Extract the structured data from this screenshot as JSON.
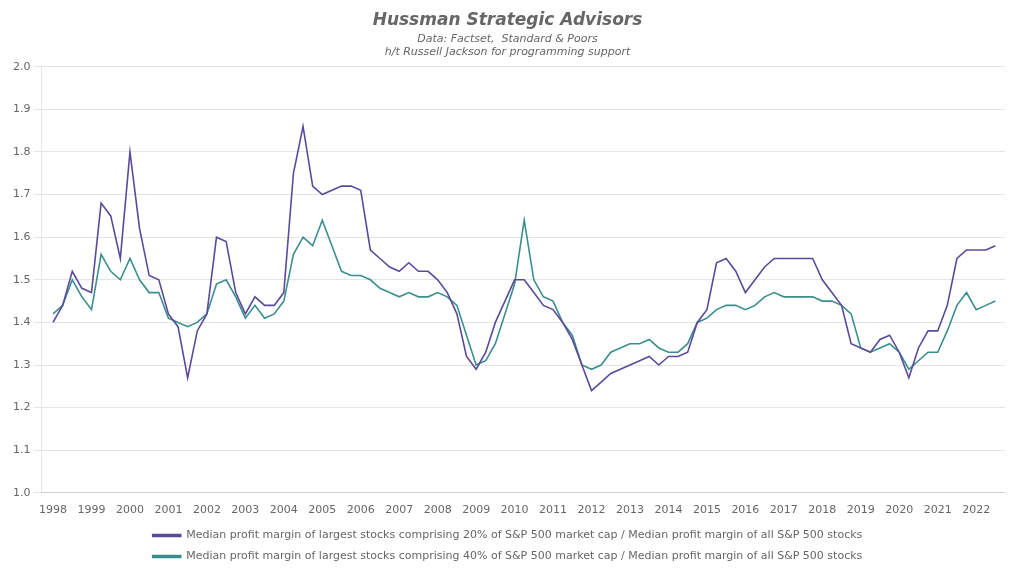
{
  "chart_data": {
    "type": "line",
    "title": "Hussman Strategic Advisors",
    "subtitle": [
      "Data: Factset,  Standard & Poors",
      "h/t Russell Jackson for programming support"
    ],
    "x": [
      1998.0,
      1998.25,
      1998.5,
      1998.75,
      1999.0,
      1999.25,
      1999.5,
      1999.75,
      2000.0,
      2000.25,
      2000.5,
      2000.75,
      2001.0,
      2001.25,
      2001.5,
      2001.75,
      2002.0,
      2002.25,
      2002.5,
      2002.75,
      2003.0,
      2003.25,
      2003.5,
      2003.75,
      2004.0,
      2004.25,
      2004.5,
      2004.75,
      2005.0,
      2005.25,
      2005.5,
      2005.75,
      2006.0,
      2006.25,
      2006.5,
      2006.75,
      2007.0,
      2007.25,
      2007.5,
      2007.75,
      2008.0,
      2008.25,
      2008.5,
      2008.75,
      2009.0,
      2009.25,
      2009.5,
      2009.75,
      2010.0,
      2010.25,
      2010.5,
      2010.75,
      2011.0,
      2011.25,
      2011.5,
      2011.75,
      2012.0,
      2012.25,
      2012.5,
      2012.75,
      2013.0,
      2013.25,
      2013.5,
      2013.75,
      2014.0,
      2014.25,
      2014.5,
      2014.75,
      2015.0,
      2015.25,
      2015.5,
      2015.75,
      2016.0,
      2016.25,
      2016.5,
      2016.75,
      2017.0,
      2017.25,
      2017.5,
      2017.75,
      2018.0,
      2018.25,
      2018.5,
      2018.75,
      2019.0,
      2019.25,
      2019.5,
      2019.75,
      2020.0,
      2020.25,
      2020.5,
      2020.75,
      2021.0,
      2021.25,
      2021.5,
      2021.75,
      2022.0,
      2022.25,
      2022.5
    ],
    "series": [
      {
        "name": "Median profit margin of largest stocks comprising 20% of S&P 500 market cap / Median profit margin of all S&P 500 stocks",
        "color": "#5B4A9B",
        "values": [
          1.4,
          1.44,
          1.52,
          1.48,
          1.47,
          1.68,
          1.65,
          1.55,
          1.8,
          1.62,
          1.51,
          1.5,
          1.42,
          1.39,
          1.27,
          1.38,
          1.42,
          1.6,
          1.59,
          1.47,
          1.42,
          1.46,
          1.44,
          1.44,
          1.47,
          1.75,
          1.86,
          1.72,
          1.7,
          1.71,
          1.72,
          1.72,
          1.71,
          1.57,
          1.55,
          1.53,
          1.52,
          1.54,
          1.52,
          1.52,
          1.5,
          1.47,
          1.42,
          1.32,
          1.29,
          1.33,
          1.4,
          1.45,
          1.5,
          1.5,
          1.47,
          1.44,
          1.43,
          1.4,
          1.36,
          1.3,
          1.24,
          1.26,
          1.28,
          1.29,
          1.3,
          1.31,
          1.32,
          1.3,
          1.32,
          1.32,
          1.33,
          1.4,
          1.43,
          1.54,
          1.55,
          1.52,
          1.47,
          1.5,
          1.53,
          1.55,
          1.55,
          1.55,
          1.55,
          1.55,
          1.5,
          1.47,
          1.44,
          1.35,
          1.34,
          1.33,
          1.36,
          1.37,
          1.33,
          1.27,
          1.34,
          1.38,
          1.38,
          1.44,
          1.55,
          1.57,
          1.57,
          1.57,
          1.58
        ]
      },
      {
        "name": "Median profit margin of largest stocks comprising 40% of S&P 500 market cap / Median profit margin of all S&P 500 stocks",
        "color": "#3A8E8E",
        "values": [
          1.42,
          1.44,
          1.5,
          1.46,
          1.43,
          1.56,
          1.52,
          1.5,
          1.55,
          1.5,
          1.47,
          1.47,
          1.41,
          1.4,
          1.39,
          1.4,
          1.42,
          1.49,
          1.5,
          1.46,
          1.41,
          1.44,
          1.41,
          1.42,
          1.45,
          1.56,
          1.6,
          1.58,
          1.64,
          1.58,
          1.52,
          1.51,
          1.51,
          1.5,
          1.48,
          1.47,
          1.46,
          1.47,
          1.46,
          1.46,
          1.47,
          1.46,
          1.44,
          1.37,
          1.3,
          1.31,
          1.35,
          1.42,
          1.49,
          1.64,
          1.5,
          1.46,
          1.45,
          1.4,
          1.37,
          1.3,
          1.29,
          1.3,
          1.33,
          1.34,
          1.35,
          1.35,
          1.36,
          1.34,
          1.33,
          1.33,
          1.35,
          1.4,
          1.41,
          1.43,
          1.44,
          1.44,
          1.43,
          1.44,
          1.46,
          1.47,
          1.46,
          1.46,
          1.46,
          1.46,
          1.45,
          1.45,
          1.44,
          1.42,
          1.34,
          1.33,
          1.34,
          1.35,
          1.33,
          1.29,
          1.31,
          1.33,
          1.33,
          1.38,
          1.44,
          1.47,
          1.43,
          1.44,
          1.45
        ]
      }
    ],
    "xlim": [
      1997.7,
      2022.75
    ],
    "xticks": [
      1998,
      1999,
      2000,
      2001,
      2002,
      2003,
      2004,
      2005,
      2006,
      2007,
      2008,
      2009,
      2010,
      2011,
      2012,
      2013,
      2014,
      2015,
      2016,
      2017,
      2018,
      2019,
      2020,
      2021,
      2022
    ],
    "ylim": [
      1.0,
      2.0
    ],
    "yticks": [
      {
        "value": 1.0,
        "label": "1.0"
      },
      1.1,
      1.2,
      1.3,
      1.4,
      1.5,
      1.6,
      1.7,
      1.8,
      1.9,
      {
        "value": 2.0,
        "label": "2.0"
      }
    ],
    "grid": "y",
    "legend": "bottom"
  }
}
